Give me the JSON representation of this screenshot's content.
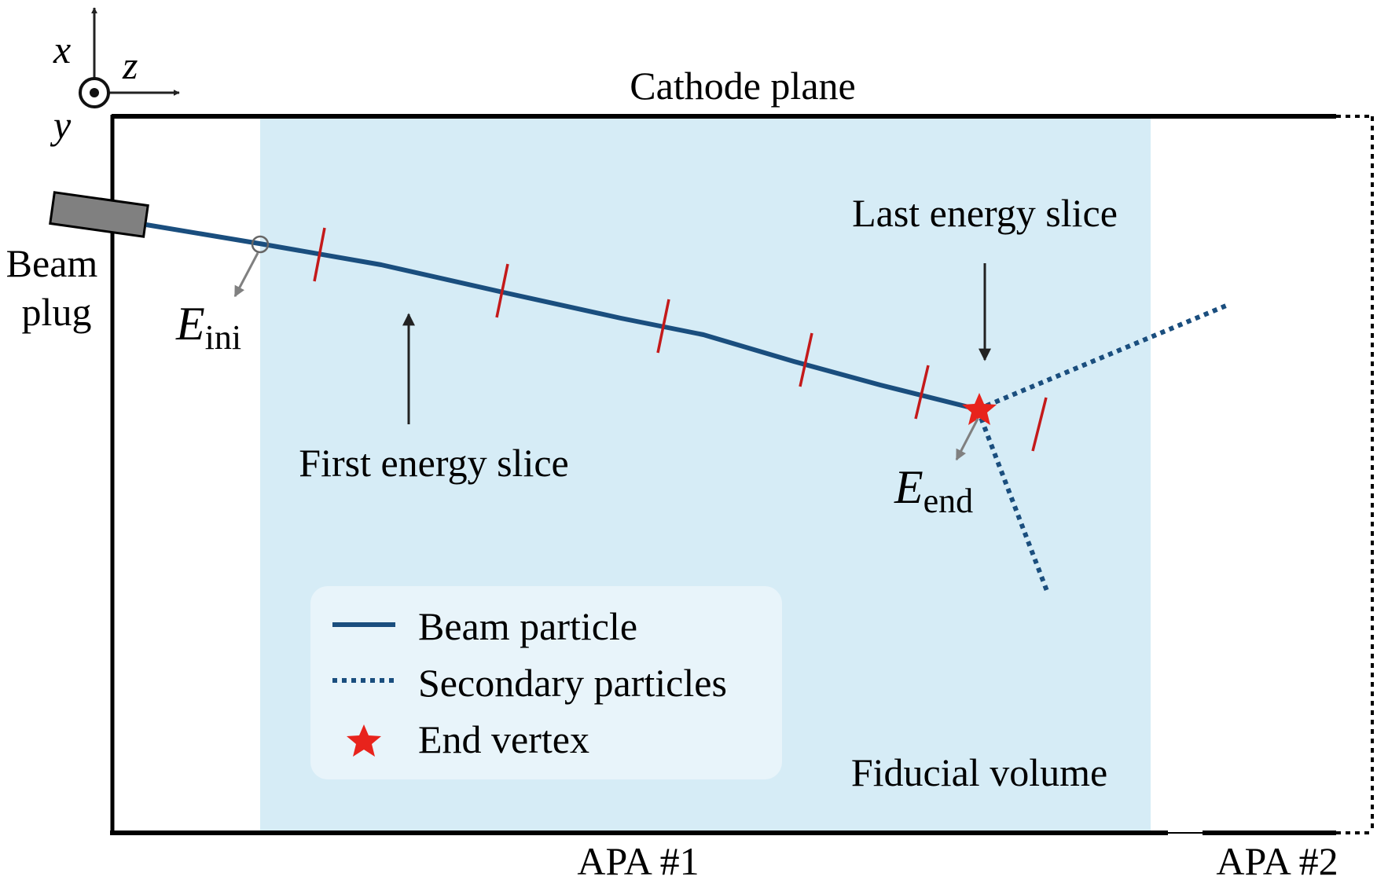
{
  "colors": {
    "fiducial_fill": "#d6ecf6",
    "beam": "#1a4e7e",
    "slice_tick": "#c41a1a",
    "vertex": "#e8231c",
    "arrow_gray": "#808080",
    "legend_bg": "#e8f4fa",
    "fiducial_text": "#1a5a8a"
  },
  "axes": {
    "x": "x",
    "z": "z",
    "y": "y"
  },
  "labels": {
    "cathode_plane": "Cathode plane",
    "beam_plug_line1": "Beam",
    "beam_plug_line2": "plug",
    "e_ini_symbol": "E",
    "e_ini_sub": "ini",
    "e_end_symbol": "E",
    "e_end_sub": "end",
    "first_energy_slice": "First energy slice",
    "last_energy_slice": "Last energy slice",
    "fiducial_volume": "Fiducial volume",
    "apa1": "APA #1",
    "apa2": "APA #2"
  },
  "legend": {
    "beam_particle": "Beam particle",
    "secondary_particles": "Secondary particles",
    "end_vertex": "End vertex"
  }
}
